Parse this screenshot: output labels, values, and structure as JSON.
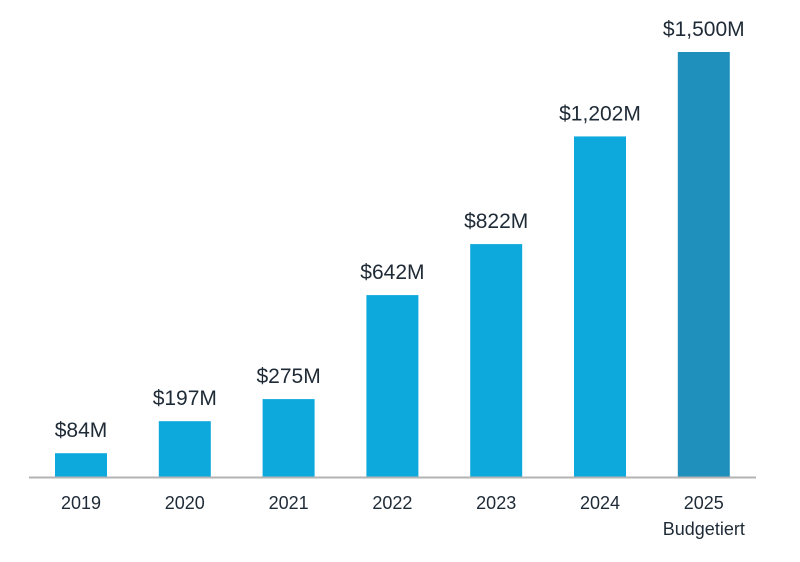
{
  "chart_data": {
    "type": "bar",
    "title": "",
    "xlabel": "",
    "ylabel": "",
    "categories": [
      "2019",
      "2020",
      "2021",
      "2022",
      "2023",
      "2024",
      "2025"
    ],
    "category_sublabels": [
      "",
      "",
      "",
      "",
      "",
      "",
      "Budgetiert"
    ],
    "values": [
      84,
      197,
      275,
      642,
      822,
      1202,
      1500
    ],
    "data_labels": [
      "$84M",
      "$197M",
      "$275M",
      "$642M",
      "$822M",
      "$1,202M",
      "$1,500M"
    ],
    "unit": "USD millions",
    "ylim": [
      0,
      1500
    ],
    "grid": false,
    "legend": "none",
    "colors": {
      "actual": "#0ea9dc",
      "budgeted": "#1f90bb",
      "axis": "#b3b3b3",
      "text": "#1e2a36"
    },
    "bar_status": [
      "actual",
      "actual",
      "actual",
      "actual",
      "actual",
      "actual",
      "budgeted"
    ]
  }
}
